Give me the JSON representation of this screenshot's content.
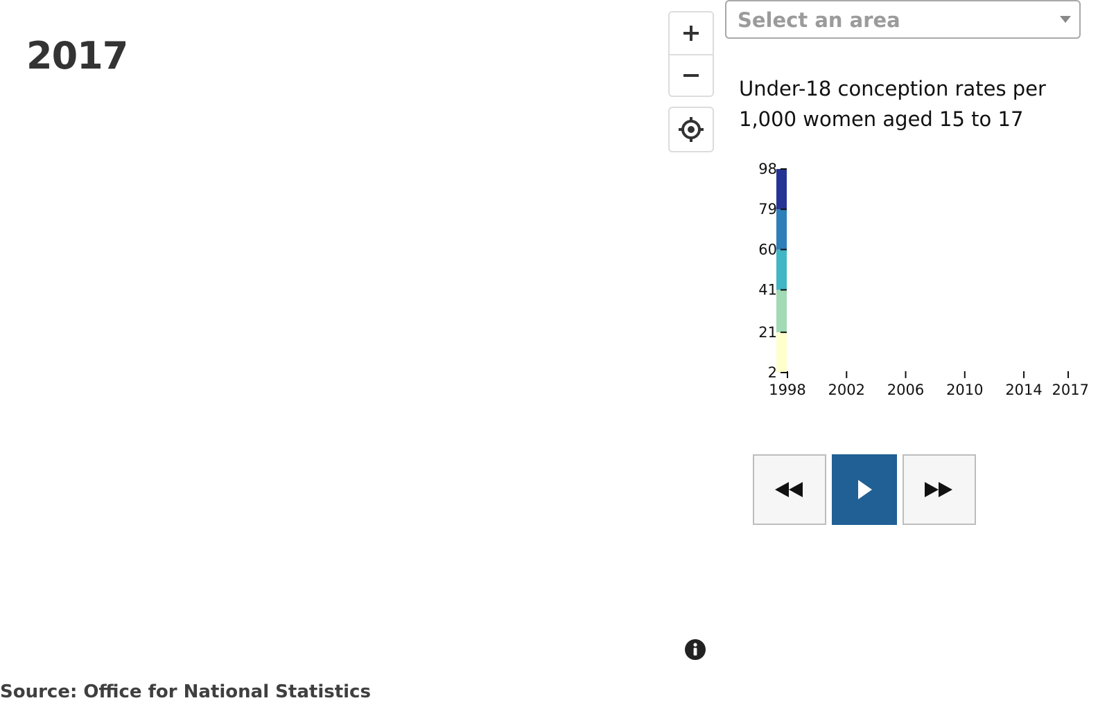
{
  "header": {
    "year": "2017"
  },
  "map_controls": {
    "zoom_in_icon": "plus-icon",
    "zoom_out_icon": "minus-icon",
    "locate_icon": "locate-icon"
  },
  "area_select": {
    "placeholder": "Select an area"
  },
  "legend": {
    "title": "Under-18 conception rates per 1,000 women aged 15 to 17"
  },
  "chart_data": {
    "type": "heatmap",
    "title": "Under-18 conception rates per 1,000 women aged 15 to 17",
    "color_scale": {
      "breaks": [
        2,
        21,
        41,
        60,
        79,
        98
      ],
      "colors": [
        "#ffffcc",
        "#a1dab4",
        "#41b6c4",
        "#2c7fb8",
        "#253494"
      ]
    },
    "y_ticks": [
      "98",
      "79",
      "60",
      "41",
      "21",
      "2"
    ],
    "x_ticks": [
      "1998",
      "2002",
      "2006",
      "2010",
      "2014",
      "2017"
    ],
    "x_range": [
      1998,
      2017
    ],
    "y_range": [
      2,
      98
    ]
  },
  "playback": {
    "rewind_icon": "rewind-icon",
    "play_icon": "play-icon",
    "forward_icon": "fast-forward-icon",
    "accent": "#206095"
  },
  "footer": {
    "info_icon": "info-icon",
    "source": "Source: Office for National Statistics"
  }
}
